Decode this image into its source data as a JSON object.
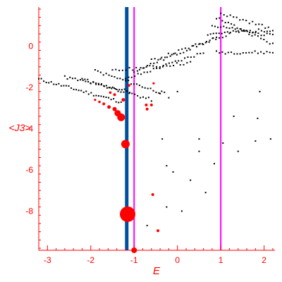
{
  "chart_data": {
    "type": "scatter",
    "title": "",
    "xlabel": "E",
    "ylabel": "<J3>",
    "xlim": [
      -3.2,
      2.25
    ],
    "ylim": [
      -9.9,
      1.9
    ],
    "xticks": [
      -3,
      -2,
      -1,
      0,
      1,
      2
    ],
    "yticks": [
      -8,
      -6,
      -4,
      -2,
      0
    ],
    "xtick_labels": [
      "-3",
      "-2",
      "-1",
      "0",
      "1",
      "2"
    ],
    "ytick_labels": [
      "-8",
      "-6",
      "-4",
      "-2",
      "0"
    ],
    "colors": {
      "axis": "#ff0000",
      "black_points": "#000000",
      "red_points": "#ff0000",
      "blue_line": "#004f9f",
      "magenta_line": "#ff00ff"
    },
    "vertical_lines": [
      {
        "x": -1.17,
        "color": "#004f9f",
        "style": "thick"
      },
      {
        "x": -1.0,
        "color": "#ff00ff",
        "style": "thin"
      },
      {
        "x": 1.0,
        "color": "#ff00ff",
        "style": "thin"
      }
    ],
    "series_black": {
      "bands": [
        {
          "x0": -3.2,
          "y0": -1.6,
          "x1": -1.3,
          "y1": -2.7,
          "n": 34
        },
        {
          "x0": -2.6,
          "y0": -1.5,
          "x1": -1.1,
          "y1": -2.2,
          "n": 26
        },
        {
          "x0": -2.2,
          "y0": -1.6,
          "x1": -0.6,
          "y1": -2.6,
          "n": 26
        },
        {
          "x0": -1.9,
          "y0": -1.2,
          "x1": -0.3,
          "y1": -2.3,
          "n": 26
        },
        {
          "x0": -1.5,
          "y0": -1.2,
          "x1": 0.3,
          "y1": -0.8,
          "n": 24
        },
        {
          "x0": -1.2,
          "y0": -1.6,
          "x1": 0.6,
          "y1": -0.3,
          "n": 26
        },
        {
          "x0": -1.0,
          "y0": -1.2,
          "x1": 0.9,
          "y1": 0.4,
          "n": 26
        },
        {
          "x0": -0.6,
          "y0": -0.7,
          "x1": 1.2,
          "y1": 0.6,
          "n": 24
        },
        {
          "x0": 0.7,
          "y0": 0.6,
          "x1": 2.2,
          "y1": 0.8,
          "n": 24
        },
        {
          "x0": 0.8,
          "y0": 1.0,
          "x1": 2.2,
          "y1": 0.5,
          "n": 22
        },
        {
          "x0": 0.9,
          "y0": 1.4,
          "x1": 2.2,
          "y1": 0.1,
          "n": 20
        },
        {
          "x0": 0.9,
          "y0": -0.3,
          "x1": 2.2,
          "y1": -0.3,
          "n": 20
        },
        {
          "x0": 1.0,
          "y0": 1.6,
          "x1": 2.1,
          "y1": 0.9,
          "n": 16
        }
      ],
      "extra_points": [
        [
          -0.55,
          -1.8
        ],
        [
          -0.4,
          -2.3
        ],
        [
          -0.2,
          -2.5
        ],
        [
          0.0,
          -2.2
        ],
        [
          1.9,
          -2.2
        ],
        [
          1.3,
          -3.4
        ],
        [
          1.85,
          -3.5
        ],
        [
          -0.35,
          -4.5
        ],
        [
          0.5,
          -4.5
        ],
        [
          1.05,
          -4.7
        ],
        [
          1.8,
          -4.6
        ],
        [
          2.15,
          -4.5
        ],
        [
          0.5,
          -5.1
        ],
        [
          1.4,
          -5.1
        ],
        [
          0.85,
          -5.7
        ],
        [
          -0.25,
          -5.8
        ],
        [
          -0.1,
          -6.1
        ],
        [
          0.3,
          -6.5
        ],
        [
          0.65,
          -7.1
        ],
        [
          -0.25,
          -7.8
        ],
        [
          0.1,
          -8.0
        ],
        [
          -0.7,
          -8.7
        ]
      ]
    },
    "series_red": {
      "points": [
        {
          "x": -1.15,
          "y": -8.15,
          "r": 11
        },
        {
          "x": -1.2,
          "y": -4.75,
          "r": 6
        },
        {
          "x": -1.3,
          "y": -3.45,
          "r": 5.5
        },
        {
          "x": -1.38,
          "y": -3.25,
          "r": 4.5
        },
        {
          "x": -1.45,
          "y": -3.05,
          "r": 3
        },
        {
          "x": -1.58,
          "y": -2.95,
          "r": 2.5
        },
        {
          "x": -1.7,
          "y": -2.8,
          "r": 2
        },
        {
          "x": -1.25,
          "y": -2.6,
          "r": 2.5
        },
        {
          "x": -1.45,
          "y": -2.35,
          "r": 2
        },
        {
          "x": -1.55,
          "y": -2.25,
          "r": 1.8
        },
        {
          "x": -1.8,
          "y": -2.7,
          "r": 1.8
        },
        {
          "x": -1.9,
          "y": -2.6,
          "r": 1.6
        },
        {
          "x": -1.12,
          "y": -1.9,
          "r": 2
        },
        {
          "x": -0.72,
          "y": -2.85,
          "r": 2
        },
        {
          "x": -0.7,
          "y": -3.05,
          "r": 2
        },
        {
          "x": -0.6,
          "y": -2.85,
          "r": 2
        },
        {
          "x": -0.55,
          "y": -1.8,
          "r": 1.6
        },
        {
          "x": -0.57,
          "y": -7.2,
          "r": 2
        },
        {
          "x": -0.45,
          "y": -8.95,
          "r": 2
        },
        {
          "x": -1.0,
          "y": -9.9,
          "r": 4
        }
      ]
    }
  }
}
